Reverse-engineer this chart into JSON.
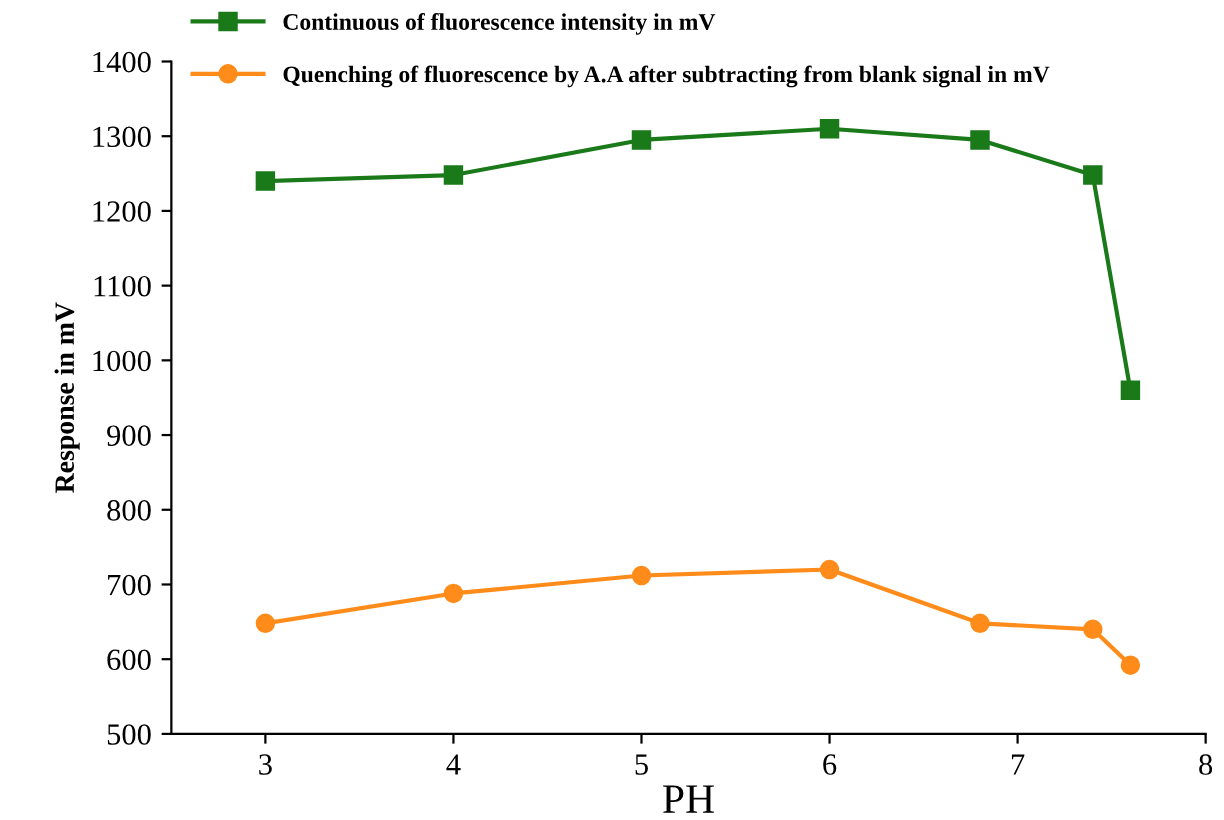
{
  "chart_data": {
    "type": "line",
    "xlabel": "PH",
    "ylabel": "Response in mV",
    "x": [
      3,
      4,
      5,
      6,
      6.8,
      7.4,
      7.6
    ],
    "series": [
      {
        "name": "Continuous of fluorescence intensity in mV",
        "color": "#1a7a1a",
        "marker": "square",
        "values": [
          1240,
          1248,
          1295,
          1310,
          1295,
          1248,
          960
        ]
      },
      {
        "name": "Quenching of fluorescence by A.A after subtracting from blank signal in mV",
        "color": "#ff8c1a",
        "marker": "circle",
        "values": [
          648,
          688,
          712,
          720,
          648,
          640,
          592
        ]
      }
    ],
    "xlim": [
      2.5,
      8
    ],
    "xticks": [
      3,
      4,
      5,
      6,
      7,
      8
    ],
    "ylim": [
      500,
      1400
    ],
    "yticks": [
      500,
      600,
      700,
      800,
      900,
      1000,
      1100,
      1200,
      1300,
      1400
    ],
    "grid": false,
    "legend": "top left",
    "line_style": "solid"
  }
}
